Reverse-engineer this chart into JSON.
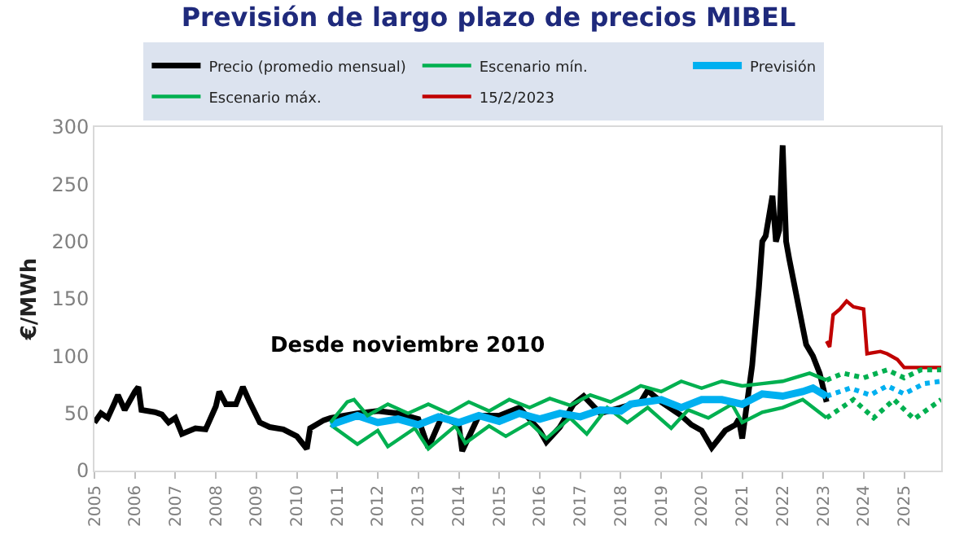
{
  "chart_data": {
    "type": "line",
    "title": "Previsión de largo plazo de precios MIBEL",
    "ylabel": "€/MWh",
    "legend": "top",
    "grid": false,
    "marker": "none",
    "annotations": [
      "Desde noviembre 2010"
    ],
    "xlim": [
      "2005-01",
      "2025-12"
    ],
    "xticks": [
      "2005",
      "2006",
      "2007",
      "2008",
      "2009",
      "2010",
      "2011",
      "2012",
      "2013",
      "2014",
      "2015",
      "2016",
      "2017",
      "2018",
      "2019",
      "2020",
      "2021",
      "2022",
      "2023",
      "2024",
      "2025"
    ],
    "ylim": [
      0,
      300
    ],
    "yticks": [
      0,
      50,
      100,
      150,
      200,
      250,
      300
    ],
    "series": [
      {
        "name": "Precio (promedio mensual)",
        "color": "#000000",
        "line_style": "solid",
        "x": [
          "2005-01",
          "2005-03",
          "2005-05",
          "2005-07",
          "2005-08",
          "2005-10",
          "2006-01",
          "2006-02",
          "2006-03",
          "2006-07",
          "2006-09",
          "2006-11",
          "2007-01",
          "2007-03",
          "2007-07",
          "2007-10",
          "2008-01",
          "2008-02",
          "2008-04",
          "2008-07",
          "2008-09",
          "2008-11",
          "2009-02",
          "2009-05",
          "2009-09",
          "2010-01",
          "2010-04",
          "2010-05",
          "2010-09",
          "2010-11",
          "2011-01",
          "2011-07",
          "2012-01",
          "2012-07",
          "2013-01",
          "2013-04",
          "2013-08",
          "2014-01",
          "2014-02",
          "2014-07",
          "2015-01",
          "2015-07",
          "2016-01",
          "2016-03",
          "2016-07",
          "2016-11",
          "2017-02",
          "2017-07",
          "2018-01",
          "2018-07",
          "2018-09",
          "2019-01",
          "2019-07",
          "2019-10",
          "2020-01",
          "2020-04",
          "2020-08",
          "2020-11",
          "2020-12",
          "2021-01",
          "2021-02",
          "2021-04",
          "2021-06",
          "2021-07",
          "2021-08",
          "2021-10",
          "2021-11",
          "2021-12",
          "2022-01",
          "2022-02",
          "2022-03",
          "2022-05",
          "2022-07",
          "2022-08",
          "2022-10",
          "2022-12",
          "2023-02"
        ],
        "values": [
          42,
          50,
          46,
          59,
          66,
          53,
          69,
          73,
          53,
          51,
          49,
          42,
          46,
          32,
          37,
          36,
          56,
          69,
          58,
          58,
          73,
          60,
          42,
          38,
          36,
          30,
          19,
          37,
          44,
          46,
          47,
          50,
          52,
          50,
          45,
          20,
          47,
          40,
          17,
          48,
          48,
          55,
          35,
          25,
          38,
          58,
          65,
          50,
          55,
          60,
          70,
          60,
          48,
          40,
          35,
          20,
          35,
          40,
          45,
          28,
          50,
          92,
          160,
          200,
          205,
          240,
          200,
          210,
          284,
          200,
          185,
          155,
          125,
          110,
          100,
          85,
          60
        ]
      },
      {
        "name": "Escenario mín.",
        "color": "#00b050",
        "line_style": "solid",
        "x": [
          "2010-11",
          "2011-07",
          "2012-01",
          "2012-04",
          "2012-12",
          "2013-04",
          "2013-12",
          "2014-03",
          "2014-10",
          "2015-03",
          "2015-10",
          "2016-03",
          "2016-10",
          "2017-03",
          "2017-09",
          "2018-03",
          "2018-09",
          "2019-04",
          "2019-09",
          "2020-03",
          "2020-10",
          "2021-01",
          "2021-07",
          "2022-01",
          "2022-07",
          "2023-02"
        ],
        "values": [
          40,
          23,
          35,
          21,
          37,
          19,
          39,
          24,
          39,
          30,
          42,
          28,
          46,
          32,
          55,
          42,
          55,
          37,
          53,
          46,
          58,
          42,
          51,
          55,
          62,
          46
        ]
      },
      {
        "name": "Previsión",
        "color": "#00b0f0",
        "line_style": "solid",
        "x": [
          "2010-11",
          "2011-07",
          "2012-01",
          "2012-07",
          "2013-01",
          "2013-07",
          "2014-01",
          "2014-07",
          "2015-01",
          "2015-07",
          "2016-01",
          "2016-07",
          "2017-01",
          "2017-07",
          "2018-01",
          "2018-04",
          "2019-01",
          "2019-07",
          "2020-01",
          "2020-07",
          "2021-01",
          "2021-07",
          "2022-01",
          "2022-07",
          "2022-10",
          "2023-02"
        ],
        "values": [
          40,
          48,
          42,
          45,
          40,
          47,
          42,
          48,
          43,
          50,
          45,
          50,
          47,
          53,
          52,
          58,
          62,
          55,
          62,
          62,
          58,
          67,
          65,
          69,
          72,
          65
        ]
      },
      {
        "name": "Escenario máx.",
        "color": "#00b050",
        "line_style": "solid",
        "x": [
          "2010-11",
          "2011-04",
          "2011-06",
          "2011-10",
          "2012-04",
          "2012-10",
          "2013-04",
          "2013-10",
          "2014-04",
          "2014-10",
          "2015-04",
          "2015-10",
          "2016-04",
          "2016-10",
          "2017-04",
          "2017-10",
          "2018-04",
          "2018-07",
          "2019-01",
          "2019-07",
          "2020-01",
          "2020-07",
          "2021-01",
          "2021-07",
          "2022-01",
          "2022-09",
          "2023-02"
        ],
        "values": [
          42,
          60,
          62,
          48,
          58,
          50,
          58,
          50,
          60,
          52,
          62,
          55,
          63,
          57,
          66,
          60,
          69,
          74,
          69,
          78,
          72,
          78,
          74,
          76,
          78,
          85,
          79
        ]
      },
      {
        "name": "15/2/2023",
        "color": "#c00000",
        "line_style": "solid",
        "x": [
          "2023-02",
          "2023-03",
          "2023-04",
          "2023-06",
          "2023-08",
          "2023-10",
          "2024-01",
          "2024-02",
          "2024-06",
          "2024-08",
          "2024-11",
          "2025-01",
          "2025-12"
        ],
        "values": [
          113,
          108,
          136,
          141,
          148,
          143,
          141,
          102,
          104,
          102,
          97,
          90,
          90
        ]
      },
      {
        "name": null,
        "color": "#00b050",
        "line_style": "dotted",
        "x": [
          "2023-02",
          "2023-10",
          "2024-04",
          "2024-10",
          "2025-04",
          "2025-12"
        ],
        "values": [
          46,
          62,
          46,
          62,
          45,
          62
        ]
      },
      {
        "name": null,
        "color": "#00b0f0",
        "line_style": "dotted",
        "x": [
          "2023-02",
          "2023-04",
          "2023-09",
          "2024-03",
          "2024-08",
          "2025-01",
          "2025-07",
          "2025-12"
        ],
        "values": [
          65,
          67,
          72,
          66,
          74,
          67,
          76,
          78
        ]
      },
      {
        "name": null,
        "color": "#00b050",
        "line_style": "dotted",
        "x": [
          "2023-02",
          "2023-07",
          "2024-01",
          "2024-08",
          "2025-01",
          "2025-06",
          "2025-12"
        ],
        "values": [
          79,
          85,
          81,
          88,
          81,
          88,
          88
        ]
      }
    ]
  }
}
